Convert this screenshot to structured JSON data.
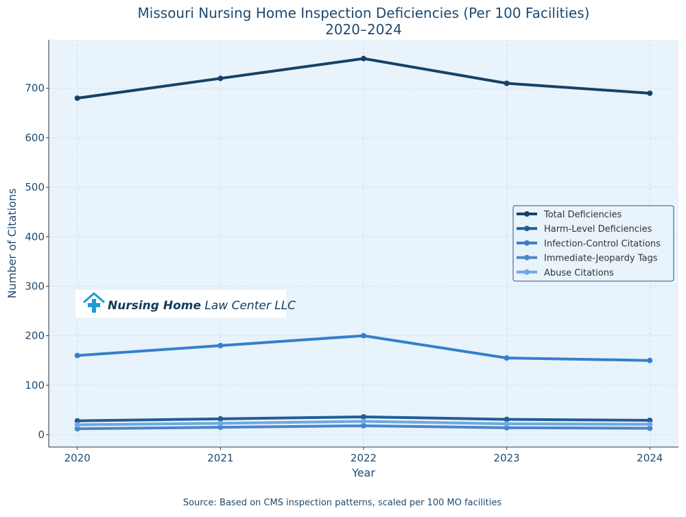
{
  "chart_data": {
    "type": "line",
    "title": "Missouri Nursing Home Inspection Deficiencies (Per 100 Facilities)",
    "subtitle": "2020–2024",
    "xlabel": "Year",
    "ylabel": "Number of Citations",
    "x": [
      2020,
      2021,
      2022,
      2023,
      2024
    ],
    "xlim": [
      2019.8,
      2024.2
    ],
    "ylim": [
      -25,
      798
    ],
    "yticks": [
      0,
      100,
      200,
      300,
      400,
      500,
      600,
      700
    ],
    "grid": true,
    "legend": "center-right",
    "series": [
      {
        "name": "Total Deficiencies",
        "color": "#174166",
        "values": [
          680,
          720,
          760,
          710,
          690
        ]
      },
      {
        "name": "Harm-Level Deficiencies",
        "color": "#225c96",
        "values": [
          28,
          32,
          36,
          31,
          29
        ]
      },
      {
        "name": "Infection-Control Citations",
        "color": "#3380cc",
        "values": [
          160,
          180,
          200,
          155,
          150
        ]
      },
      {
        "name": "Immediate-Jeopardy Tags",
        "color": "#4a86c8",
        "values": [
          12,
          15,
          18,
          14,
          13
        ]
      },
      {
        "name": "Abuse Citations",
        "color": "#6fa8e3",
        "values": [
          20,
          23,
          27,
          22,
          21
        ]
      }
    ],
    "source": "Source: Based on CMS inspection patterns, scaled per 100 MO facilities"
  },
  "logo": {
    "text_bold": "Nursing Home",
    "text_regular": "Law Center LLC"
  }
}
